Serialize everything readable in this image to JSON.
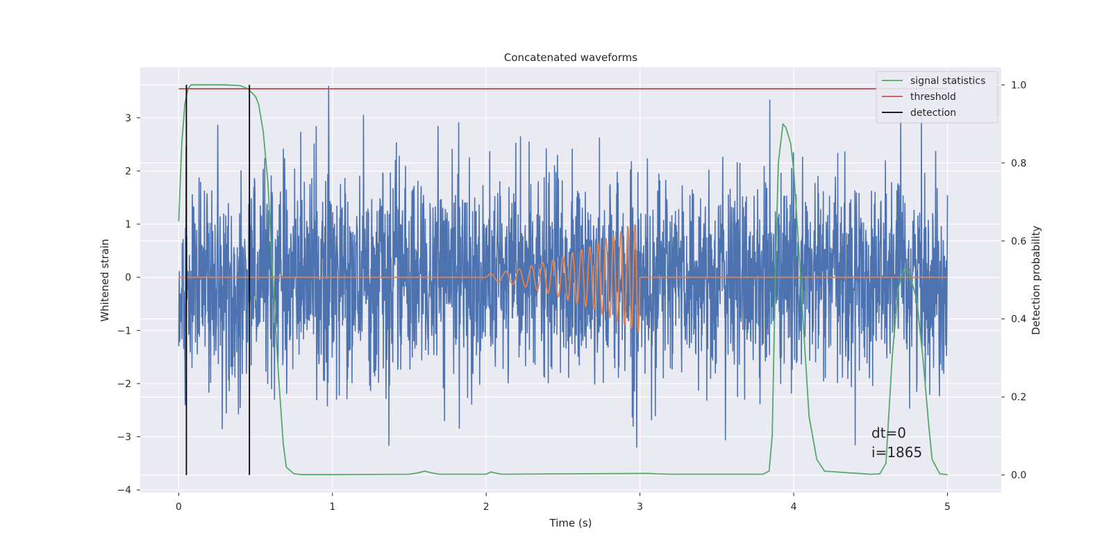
{
  "chart_data": {
    "type": "line",
    "title": "Concatenated waveforms",
    "xlabel": "Time (s)",
    "ylabel": "Whitened strain",
    "y2label": "Detection probability",
    "xlim": [
      -0.25,
      5.35
    ],
    "ylim": [
      -4.05,
      3.95
    ],
    "y2lim": [
      -0.045,
      1.045
    ],
    "x_ticks": [
      0,
      1,
      2,
      3,
      4,
      5
    ],
    "y_ticks": [
      -4,
      -3,
      -2,
      -1,
      0,
      1,
      2,
      3
    ],
    "y2_ticks": [
      0.0,
      0.2,
      0.4,
      0.6,
      0.8,
      1.0
    ],
    "grid": true,
    "legend_position": "top-right",
    "colors": {
      "noise": "#4c72b0",
      "signal": "#dd8452",
      "statistics": "#55a868",
      "threshold": "#c44e52",
      "detection": "#000000",
      "plot_bg": "#eaeaf2",
      "grid": "#ffffff"
    },
    "series": [
      {
        "name": "",
        "axis": "left",
        "kind": "noise",
        "x_range": [
          0,
          5
        ],
        "amplitude_range": [
          -3.6,
          3.6
        ],
        "note_ref": "strain"
      },
      {
        "name": "",
        "axis": "left",
        "kind": "signal",
        "x": [
          0,
          2.0,
          2.05,
          2.1,
          2.15,
          2.2,
          2.25,
          2.3,
          2.35,
          2.4,
          2.45,
          2.5,
          2.55,
          2.6,
          2.65,
          2.7,
          2.75,
          2.8,
          2.85,
          2.9,
          2.95,
          3.0,
          3.0,
          5.0
        ],
        "envelope": [
          0,
          0.05,
          0.08,
          0.1,
          0.12,
          0.15,
          0.18,
          0.22,
          0.26,
          0.3,
          0.35,
          0.4,
          0.45,
          0.5,
          0.55,
          0.6,
          0.68,
          0.75,
          0.82,
          0.9,
          0.97,
          1.05,
          0,
          0
        ]
      },
      {
        "name": "signal statistics",
        "axis": "right",
        "x": [
          0,
          0.02,
          0.04,
          0.06,
          0.08,
          0.1,
          0.15,
          0.2,
          0.3,
          0.4,
          0.45,
          0.5,
          0.52,
          0.55,
          0.58,
          0.6,
          0.62,
          0.65,
          0.68,
          0.7,
          0.75,
          0.8,
          1.0,
          1.5,
          1.55,
          1.6,
          1.65,
          1.7,
          2.0,
          2.03,
          2.06,
          2.1,
          2.6,
          3.05,
          3.1,
          3.2,
          3.8,
          3.84,
          3.86,
          3.88,
          3.9,
          3.93,
          3.95,
          3.98,
          4.0,
          4.03,
          4.06,
          4.1,
          4.15,
          4.2,
          4.5,
          4.56,
          4.6,
          4.64,
          4.68,
          4.72,
          4.75,
          4.8,
          4.84,
          4.88,
          4.9,
          4.95,
          5.0
        ],
        "values": [
          0.65,
          0.85,
          0.95,
          0.99,
          1.0,
          1.0,
          1.0,
          1.0,
          1.0,
          0.998,
          0.99,
          0.97,
          0.95,
          0.88,
          0.75,
          0.6,
          0.45,
          0.25,
          0.08,
          0.02,
          0.003,
          0.001,
          0.001,
          0.002,
          0.005,
          0.01,
          0.005,
          0.002,
          0.002,
          0.008,
          0.005,
          0.002,
          0.003,
          0.004,
          0.003,
          0.002,
          0.002,
          0.01,
          0.1,
          0.5,
          0.8,
          0.9,
          0.89,
          0.85,
          0.78,
          0.6,
          0.4,
          0.15,
          0.04,
          0.01,
          0.002,
          0.003,
          0.03,
          0.3,
          0.48,
          0.53,
          0.52,
          0.45,
          0.3,
          0.12,
          0.04,
          0.003,
          0.001
        ]
      },
      {
        "name": "threshold",
        "axis": "right",
        "x": [
          0,
          5
        ],
        "values": [
          0.99,
          0.99
        ]
      },
      {
        "name": "detection",
        "axis": "right",
        "vertical_lines_x": [
          0.05,
          0.46
        ],
        "y_span": [
          0.0,
          1.0
        ]
      }
    ],
    "legend": [
      "signal statistics",
      "threshold",
      "detection"
    ],
    "annotations": [
      "dt=0",
      "i=1865"
    ]
  }
}
